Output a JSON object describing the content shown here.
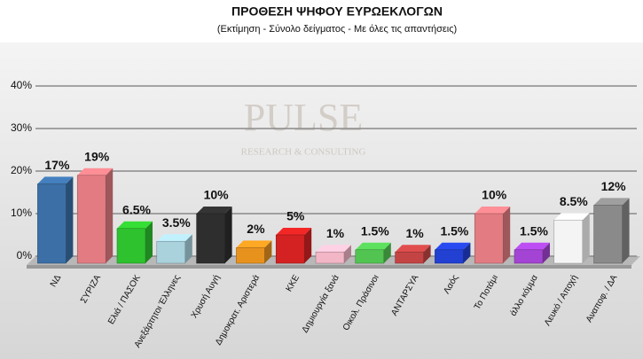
{
  "chart_data": {
    "type": "bar3d",
    "title": "ΠΡΟΘΕΣΗ ΨΗΦΟΥ ΕΥΡΩΕΚΛΟΓΩΝ",
    "subtitle": "(Εκτίμηση - Σύνολο δείγματος - Με όλες τις απαντήσεις)",
    "watermark": [
      "PULSE",
      "RESEARCH & CONSULTING"
    ],
    "categories": [
      "ΝΔ",
      "ΣΥΡΙΖΑ",
      "Ελιά / ΠΑΣΟΚ",
      "Ανεξάρτητοι Έλληνες",
      "Χρυσή Αυγή",
      "Δημοκρατ. Αριστερά",
      "ΚΚΕ",
      "Δημιουργία ξανά",
      "Οικολ. Πράσινοι",
      "ΑΝΤΑΡΣΥΑ",
      "Λαός",
      "Το Ποτάμι",
      "άλλο κόμμα",
      "Λευκό / Αποχή",
      "Αναποφ. / ΔΑ"
    ],
    "values": [
      17,
      19,
      6.5,
      3.5,
      10,
      2,
      5,
      1,
      1.5,
      1,
      1.5,
      10,
      1.5,
      8.5,
      12
    ],
    "value_labels": [
      "17%",
      "19%",
      "6.5%",
      "3.5%",
      "10%",
      "2%",
      "5%",
      "1%",
      "1.5%",
      "1%",
      "1.5%",
      "10%",
      "1.5%",
      "8.5%",
      "12%"
    ],
    "colors": [
      "#3b6fa6",
      "#e27c82",
      "#2ec22e",
      "#a9d2dd",
      "#2e2e2e",
      "#e8921e",
      "#d42222",
      "#f2b6c6",
      "#52c452",
      "#c44444",
      "#2240d2",
      "#e27c82",
      "#a444d4",
      "#f4f4f4",
      "#8a8a8a"
    ],
    "ylim": [
      0,
      40
    ],
    "yticks": [
      {
        "value": 0,
        "label": "0%"
      },
      {
        "value": 10,
        "label": "10%"
      },
      {
        "value": 20,
        "label": "20%"
      },
      {
        "value": 30,
        "label": "30%"
      },
      {
        "value": 40,
        "label": "40%"
      }
    ],
    "grid": true
  }
}
